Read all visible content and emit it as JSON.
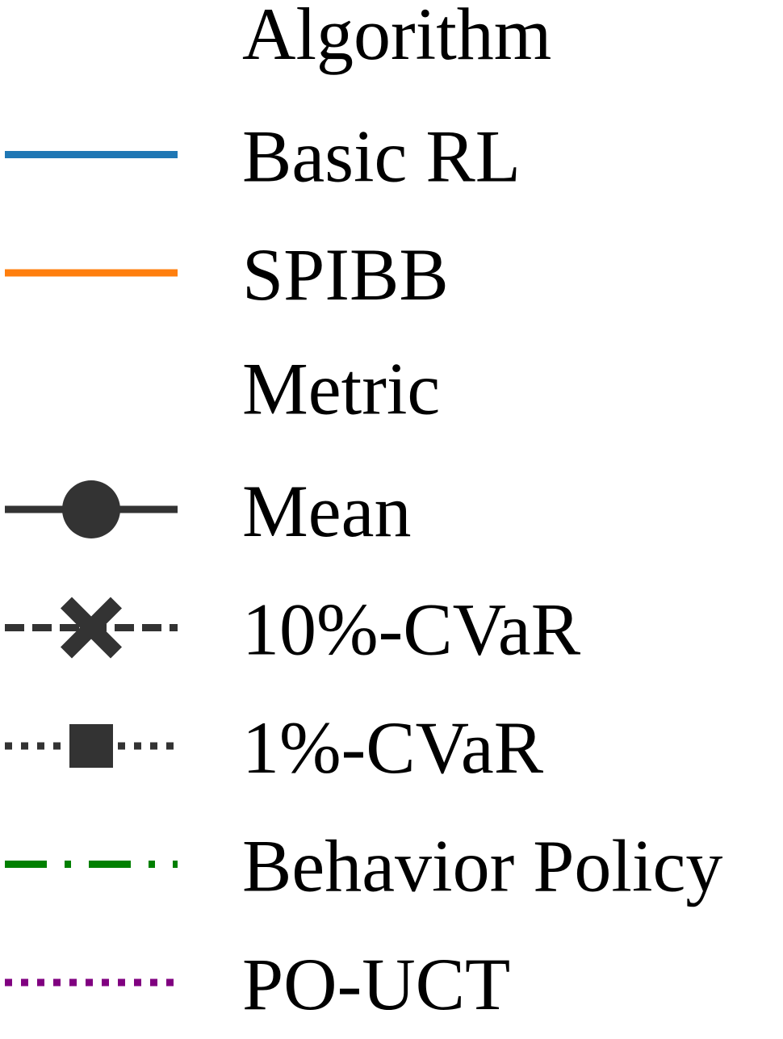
{
  "chart_data": {
    "type": "legend",
    "groups": [
      {
        "title": "Algorithm",
        "entries": [
          {
            "label": "Basic RL",
            "color": "#1f77b4",
            "linestyle": "solid",
            "marker": "none"
          },
          {
            "label": "SPIBB",
            "color": "#ff7f0e",
            "linestyle": "solid",
            "marker": "none"
          }
        ]
      },
      {
        "title": "Metric",
        "entries": [
          {
            "label": "Mean",
            "color": "#333333",
            "linestyle": "solid",
            "marker": "circle"
          },
          {
            "label": "10%-CVaR",
            "color": "#333333",
            "linestyle": "dashed",
            "marker": "x-filled"
          },
          {
            "label": "1%-CVaR",
            "color": "#333333",
            "linestyle": "dotted",
            "marker": "square"
          },
          {
            "label": "Behavior Policy",
            "color": "#008000",
            "linestyle": "dashdot",
            "marker": "none"
          },
          {
            "label": "PO-UCT",
            "color": "#800080",
            "linestyle": "dotted",
            "marker": "none"
          }
        ]
      }
    ]
  }
}
